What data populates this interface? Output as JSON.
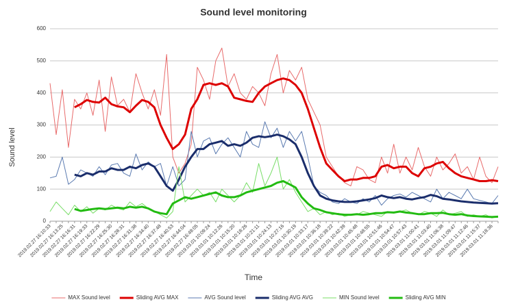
{
  "chart_data": {
    "type": "line",
    "title": "Sound level monitoring",
    "x_label": "Time",
    "y_label": "Sound level",
    "categories": [
      "2019.02.27 16:10:33",
      null,
      "2019.02.27 16:13:25",
      null,
      "2019.02.27 16:16:31",
      null,
      "2019.02.27 16:19:33",
      null,
      "2019.02.27 16:22:29",
      null,
      "2019.02.27 16:25:30",
      null,
      "2019.02.27 16:28:31",
      null,
      "2019.02.27 16:31:38",
      null,
      "2019.02.27 16:34:40",
      null,
      "2019.02.27 16:37:48",
      null,
      "2019.02.27 16:40:53",
      null,
      "2019.02.27 16:44:04",
      null,
      "2019.02.27 16:49:05",
      null,
      "2019.03.01 10:09:24",
      null,
      "2019.03.01 10:12:26",
      null,
      "2019.03.01 10:15:20",
      null,
      "2019.03.01 10:18:26",
      null,
      "2019.03.01 10:21:11",
      null,
      "2019.03.01 10:24:13",
      null,
      "2019.03.01 10:27:16",
      null,
      "2019.03.01 10:30:19",
      null,
      "2019.03.01 10:33:17",
      null,
      "2019.03.01 10:36:18",
      null,
      "2019.03.01 10:39:22",
      null,
      "2019.03.01 10:42:39",
      null,
      "2019.03.01 10:45:48",
      null,
      "2019.03.01 10:48:55",
      null,
      "2019.03.01 10:51:46",
      null,
      "2019.03.01 10:54:47",
      null,
      "2019.03.01 10:57:43",
      null,
      "2019.03.01 11:00:41",
      null,
      "2019.03.01 11:03:40",
      null,
      "2019.03.01 11:06:38",
      null,
      "2019.03.01 11:09:47",
      null,
      "2019.03.01 11:12:46",
      null,
      "2019.03.01 11:15:37",
      null,
      "2019.03.01 11:18:36",
      null
    ],
    "series": [
      {
        "name": "MAX Sound level",
        "color": "#e86a6a",
        "values": [
          430,
          270,
          410,
          230,
          380,
          350,
          400,
          330,
          440,
          280,
          450,
          360,
          380,
          340,
          460,
          400,
          350,
          410,
          330,
          520,
          200,
          150,
          180,
          240,
          480,
          440,
          380,
          500,
          540,
          420,
          460,
          400,
          380,
          420,
          400,
          360,
          460,
          520,
          400,
          470,
          440,
          480,
          380,
          340,
          300,
          200,
          170,
          140,
          120,
          110,
          170,
          160,
          130,
          120,
          200,
          150,
          240,
          150,
          200,
          160,
          230,
          170,
          140,
          200,
          160,
          180,
          210,
          150,
          170,
          130,
          200,
          140,
          120,
          170
        ]
      },
      {
        "name": "Sliding AVG MAX",
        "color": "#dd0000",
        "values": [
          null,
          null,
          null,
          null,
          355,
          365,
          378,
          372,
          370,
          385,
          365,
          358,
          355,
          340,
          360,
          378,
          372,
          355,
          300,
          260,
          225,
          240,
          270,
          350,
          380,
          425,
          430,
          425,
          430,
          420,
          385,
          380,
          375,
          372,
          400,
          420,
          430,
          440,
          445,
          440,
          425,
          400,
          350,
          290,
          230,
          180,
          160,
          140,
          125,
          130,
          130,
          135,
          135,
          140,
          170,
          175,
          165,
          170,
          170,
          150,
          140,
          165,
          170,
          180,
          185,
          165,
          150,
          140,
          135,
          130,
          125,
          125,
          128,
          125
        ]
      },
      {
        "name": "AVG Sound level",
        "color": "#5a7ab0",
        "values": [
          135,
          140,
          200,
          115,
          130,
          160,
          150,
          140,
          170,
          145,
          175,
          180,
          150,
          140,
          210,
          160,
          185,
          170,
          180,
          110,
          170,
          110,
          130,
          280,
          200,
          250,
          260,
          210,
          240,
          260,
          230,
          200,
          280,
          240,
          230,
          310,
          260,
          290,
          230,
          280,
          250,
          280,
          200,
          110,
          90,
          80,
          60,
          55,
          70,
          60,
          55,
          70,
          60,
          80,
          50,
          70,
          80,
          85,
          75,
          90,
          80,
          70,
          60,
          100,
          70,
          90,
          80,
          70,
          100,
          70,
          65,
          60,
          55,
          80
        ]
      },
      {
        "name": "Sliding AVG AVG",
        "color": "#1a2d6b",
        "values": [
          null,
          null,
          null,
          null,
          145,
          140,
          150,
          145,
          155,
          155,
          165,
          160,
          160,
          170,
          165,
          175,
          180,
          170,
          140,
          110,
          95,
          130,
          170,
          200,
          225,
          225,
          240,
          245,
          250,
          235,
          240,
          235,
          245,
          260,
          265,
          262,
          265,
          270,
          265,
          255,
          240,
          200,
          150,
          110,
          80,
          70,
          65,
          62,
          60,
          60,
          62,
          65,
          68,
          72,
          80,
          75,
          72,
          75,
          70,
          68,
          72,
          75,
          82,
          78,
          70,
          68,
          65,
          62,
          60,
          58,
          57,
          56,
          55,
          56
        ]
      },
      {
        "name": "MIN Sound level",
        "color": "#77dd66",
        "values": [
          30,
          60,
          40,
          20,
          50,
          30,
          45,
          25,
          40,
          35,
          50,
          40,
          35,
          60,
          45,
          55,
          40,
          30,
          20,
          10,
          30,
          170,
          60,
          80,
          100,
          80,
          90,
          60,
          100,
          80,
          60,
          80,
          120,
          90,
          180,
          110,
          150,
          200,
          100,
          130,
          90,
          60,
          30,
          40,
          20,
          30,
          20,
          25,
          15,
          20,
          20,
          30,
          25,
          20,
          15,
          30,
          25,
          30,
          35,
          25,
          20,
          30,
          25,
          15,
          35,
          20,
          25,
          30,
          15,
          20,
          15,
          20,
          10,
          15
        ]
      },
      {
        "name": "Sliding AVG MIN",
        "color": "#22bb11",
        "values": [
          null,
          null,
          null,
          null,
          38,
          32,
          35,
          38,
          40,
          38,
          40,
          42,
          40,
          45,
          42,
          45,
          40,
          30,
          25,
          22,
          55,
          65,
          75,
          70,
          75,
          80,
          85,
          90,
          80,
          75,
          75,
          80,
          90,
          95,
          100,
          105,
          110,
          120,
          125,
          115,
          105,
          75,
          55,
          40,
          35,
          28,
          25,
          22,
          20,
          20,
          22,
          20,
          22,
          25,
          25,
          28,
          27,
          30,
          27,
          25,
          22,
          22,
          25,
          25,
          26,
          22,
          20,
          22,
          18,
          16,
          15,
          14,
          13,
          14
        ]
      }
    ],
    "ylim": [
      0,
      600
    ],
    "yticks": [
      0,
      100,
      200,
      300,
      400,
      500,
      600
    ],
    "grid": true,
    "legend": "bottom"
  }
}
